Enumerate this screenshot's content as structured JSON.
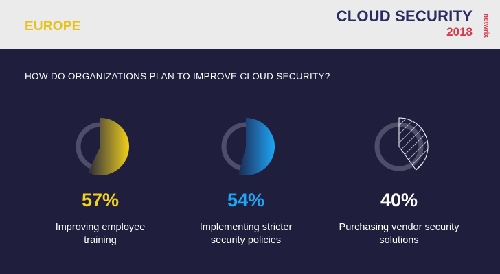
{
  "header": {
    "region": "EUROPE",
    "brand_title": "CLOUD SECURITY",
    "brand_year": "2018",
    "brand_logo": "netwrix"
  },
  "question": "HOW DO ORGANIZATIONS PLAN TO IMPROVE CLOUD SECURITY?",
  "colors": {
    "background": "#1f1f3d",
    "header_bg": "#ebebeb",
    "yellow": "#f2d21b",
    "blue": "#1ea6f5",
    "white": "#ffffff",
    "ring_track": "#4e4e6a"
  },
  "chart_data": {
    "type": "pie",
    "unit": "%",
    "items": [
      {
        "label": "Improving employee training",
        "value": 57,
        "value_label": "57%",
        "color": "#f2d21b",
        "style": "gradient"
      },
      {
        "label": "Implementing stricter security policies",
        "value": 54,
        "value_label": "54%",
        "color": "#1ea6f5",
        "style": "gradient"
      },
      {
        "label": "Purchasing vendor security solutions",
        "value": 40,
        "value_label": "40%",
        "color": "#ffffff",
        "style": "hatched"
      }
    ]
  }
}
